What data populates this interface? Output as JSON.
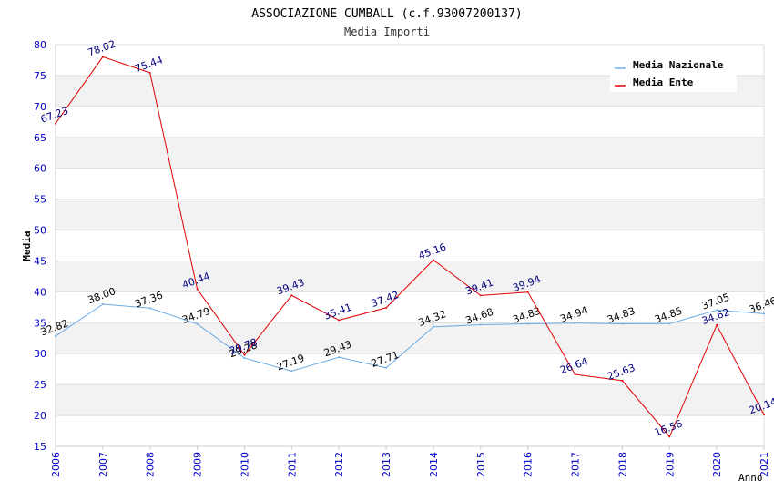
{
  "chart_data": {
    "type": "line",
    "title": "ASSOCIAZIONE CUMBALL (c.f.93007200137)",
    "subtitle": "Media Importi",
    "xlabel": "Anno",
    "ylabel": "Media",
    "ylim": [
      15,
      80
    ],
    "yticks": [
      "15",
      "20",
      "25",
      "30",
      "35",
      "40",
      "45",
      "50",
      "55",
      "60",
      "65",
      "70",
      "75",
      "80"
    ],
    "categories": [
      "2006",
      "2007",
      "2008",
      "2009",
      "2010",
      "2011",
      "2012",
      "2013",
      "2014",
      "2015",
      "2016",
      "2017",
      "2018",
      "2019",
      "2020",
      "2021"
    ],
    "grid": "horizontal bands",
    "legend_position": "top-right",
    "series": [
      {
        "name": "Media Nazionale",
        "color": "#6aaae4",
        "label_color": "#000000",
        "values": [
          32.82,
          38.0,
          37.36,
          34.79,
          29.28,
          27.19,
          29.43,
          27.71,
          34.32,
          34.68,
          34.83,
          34.94,
          34.83,
          34.85,
          37.05,
          36.46
        ],
        "labels": [
          "32.82",
          "38.00",
          "37.36",
          "34.79",
          "29.28",
          "27.19",
          "29.43",
          "27.71",
          "34.32",
          "34.68",
          "34.83",
          "34.94",
          "34.83",
          "34.85",
          "37.05",
          "36.46"
        ]
      },
      {
        "name": "Media Ente",
        "color": "#e00000",
        "label_color": "#000080",
        "values": [
          67.23,
          78.02,
          75.44,
          40.44,
          29.78,
          39.43,
          35.41,
          37.42,
          45.16,
          39.41,
          39.94,
          26.64,
          25.63,
          16.56,
          34.62,
          20.14
        ],
        "labels": [
          "67.23",
          "78.02",
          "75.44",
          "40.44",
          "29.78",
          "39.43",
          "35.41",
          "37.42",
          "45.16",
          "39.41",
          "39.94",
          "26.64",
          "25.63",
          "16.56",
          "34.62",
          "20.14"
        ]
      }
    ],
    "colors": {
      "axis_text": "#0000cc",
      "band": "#f2f2f2",
      "grid": "#dddddd"
    }
  }
}
